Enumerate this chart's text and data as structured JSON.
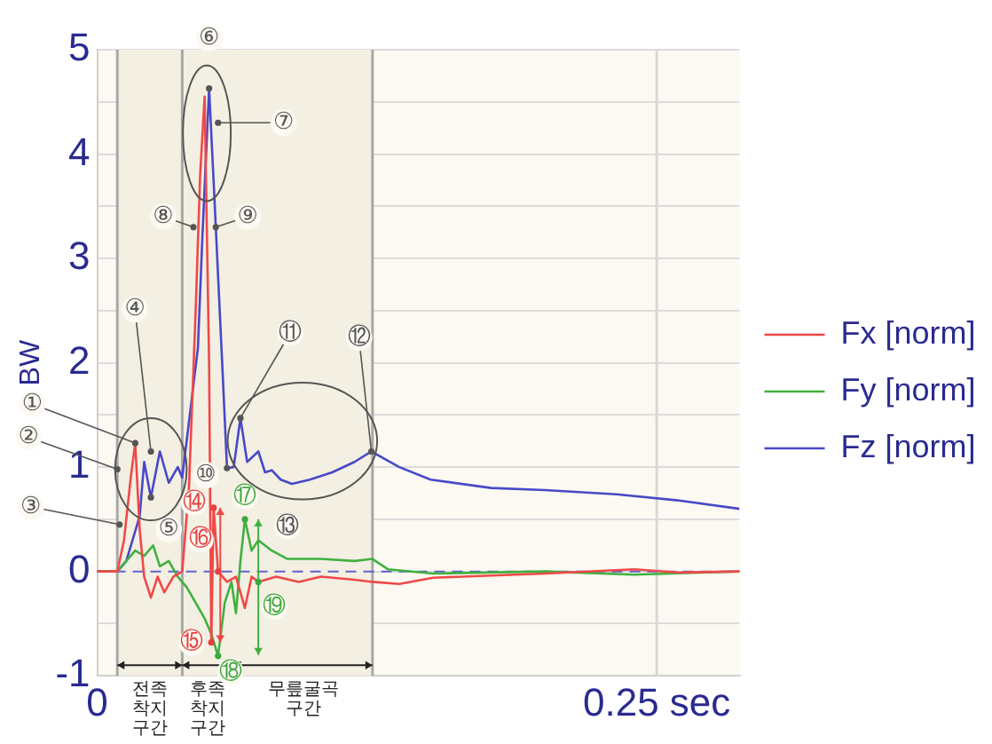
{
  "chart_data": {
    "type": "line",
    "ylabel": "BW",
    "xlim": [
      0,
      0.287
    ],
    "ylim": [
      -1,
      5
    ],
    "xticks": [
      0,
      {
        "value": 0.25,
        "label": "0.25 sec"
      }
    ],
    "yticks": [
      -1,
      {
        "value": -0.5,
        "label": null
      },
      0,
      {
        "value": 0.5,
        "label": null
      },
      1,
      {
        "value": 1.5,
        "label": null
      },
      2,
      {
        "value": 2.5,
        "label": null
      },
      3,
      {
        "value": 3.5,
        "label": null
      },
      4,
      {
        "value": 4.5,
        "label": null
      },
      5
    ],
    "grid": "y",
    "legend": "right",
    "marker": "none",
    "line_style": "solid",
    "series": [
      {
        "name": "Fx [norm]",
        "color": "#f04848",
        "x": [
          0,
          0.009,
          0.012,
          0.015,
          0.017,
          0.019,
          0.021,
          0.024,
          0.027,
          0.03,
          0.034,
          0.038,
          0.041,
          0.044,
          0.046,
          0.048,
          0.05,
          0.051,
          0.052,
          0.054,
          0.058,
          0.062,
          0.066,
          0.069,
          0.072,
          0.08,
          0.09,
          0.1,
          0.115,
          0.123,
          0.135,
          0.15,
          0.2,
          0.24,
          0.26,
          0.287
        ],
        "values": [
          0,
          0,
          0.3,
          0.9,
          1.23,
          0.4,
          -0.05,
          -0.25,
          -0.05,
          -0.2,
          -0.05,
          0,
          0.8,
          2.5,
          3.8,
          4.55,
          2,
          -0.68,
          0.61,
          0,
          -0.1,
          -0.05,
          -0.35,
          -0.05,
          -0.1,
          -0.05,
          -0.1,
          -0.05,
          -0.08,
          -0.1,
          -0.12,
          -0.06,
          -0.02,
          0.02,
          -0.01,
          0
        ]
      },
      {
        "name": "Fy [norm]",
        "color": "#40b040",
        "x": [
          0,
          0.009,
          0.013,
          0.017,
          0.021,
          0.025,
          0.028,
          0.032,
          0.036,
          0.04,
          0.044,
          0.048,
          0.051,
          0.054,
          0.057,
          0.06,
          0.062,
          0.064,
          0.066,
          0.069,
          0.072,
          0.078,
          0.085,
          0.1,
          0.115,
          0.123,
          0.13,
          0.15,
          0.2,
          0.24,
          0.287
        ],
        "values": [
          0,
          0,
          0.1,
          0.2,
          0.15,
          0.25,
          0.05,
          0.1,
          -0.05,
          -0.15,
          -0.3,
          -0.45,
          -0.6,
          -0.81,
          -0.3,
          -0.1,
          -0.4,
          0.1,
          0.5,
          0.2,
          0.3,
          0.2,
          0.12,
          0.12,
          0.1,
          0.12,
          0.02,
          -0.02,
          0,
          -0.03,
          0
        ]
      },
      {
        "name": "Fz [norm]",
        "color": "#4848c8",
        "x": [
          0,
          0.009,
          0.013,
          0.019,
          0.021,
          0.024,
          0.028,
          0.032,
          0.036,
          0.038,
          0.045,
          0.047,
          0.05,
          0.052,
          0.056,
          0.058,
          0.061,
          0.064,
          0.067,
          0.072,
          0.075,
          0.078,
          0.082,
          0.087,
          0.095,
          0.105,
          0.115,
          0.1225,
          0.135,
          0.149,
          0.176,
          0.2,
          0.232,
          0.26,
          0.287
        ],
        "values": [
          0,
          0,
          0.1,
          0.53,
          1.05,
          0.71,
          1.15,
          0.85,
          1,
          0.9,
          2.14,
          3.2,
          4.63,
          3.75,
          1.93,
          0.99,
          1,
          1.47,
          1.05,
          1.15,
          0.95,
          0.97,
          0.88,
          0.84,
          0.88,
          0.95,
          1.05,
          1.15,
          1,
          0.88,
          0.8,
          0.78,
          0.74,
          0.68,
          0.6
        ]
      }
    ],
    "ref_lines": [
      {
        "axis": "x",
        "value": 0.009,
        "label": null,
        "color": "#a8a8a8"
      },
      {
        "axis": "x",
        "value": 0.038,
        "label": null,
        "color": "#a8a8a8"
      },
      {
        "axis": "x",
        "value": 0.123,
        "label": null,
        "color": "#a8a8a8"
      },
      {
        "axis": "x",
        "value": 0.25,
        "label": null,
        "color": "#d8d8d8"
      },
      {
        "axis": "y",
        "value": 0,
        "label": null,
        "color": "#6060d0",
        "line_style": "dashed"
      }
    ],
    "annotations": [
      {
        "text": "①",
        "x": 0.017,
        "y": 1.23
      },
      {
        "text": "②",
        "x": 0.009,
        "y": 0.98
      },
      {
        "text": "③",
        "x": 0.01,
        "y": 0.45
      },
      {
        "text": "④",
        "x": 0.024,
        "y": 1.15
      },
      {
        "text": "⑤",
        "x": 0.024,
        "y": 0.71
      },
      {
        "text": "⑥",
        "x": 0.05,
        "y": 4.63
      },
      {
        "text": "⑦",
        "x": 0.054,
        "y": 4.3
      },
      {
        "text": "⑧",
        "x": 0.043,
        "y": 3.3
      },
      {
        "text": "⑨",
        "x": 0.053,
        "y": 3.3
      },
      {
        "text": "⑩",
        "x": 0.058,
        "y": 0.99
      },
      {
        "text": "⑪",
        "x": 0.064,
        "y": 1.47
      },
      {
        "text": "⑫",
        "x": 0.1225,
        "y": 1.15
      },
      {
        "text": "⑬",
        "x": 0.085,
        "y": 0.43
      },
      {
        "text": "⑭",
        "x": 0.052,
        "y": 0.61
      },
      {
        "text": "⑮",
        "x": 0.051,
        "y": -0.68
      },
      {
        "text": "⑯",
        "x": 0.054,
        "y": 0
      },
      {
        "text": "⑰",
        "x": 0.066,
        "y": 0.5
      },
      {
        "text": "⑱",
        "x": 0.054,
        "y": -0.81
      },
      {
        "text": "⑲",
        "x": 0.072,
        "y": -0.1
      }
    ],
    "bands": [
      {
        "axis": "x",
        "from": 0.009,
        "to": 0.038,
        "label": "전족 착지 구간",
        "color": "#f3efe2"
      },
      {
        "axis": "x",
        "from": 0.038,
        "to": 0.061,
        "label": "후족 착지 구간",
        "color": "#f3efe2"
      },
      {
        "axis": "x",
        "from": 0.061,
        "to": 0.123,
        "label": "무릎굴곡 구간",
        "color": "#f3efe2"
      }
    ]
  }
}
